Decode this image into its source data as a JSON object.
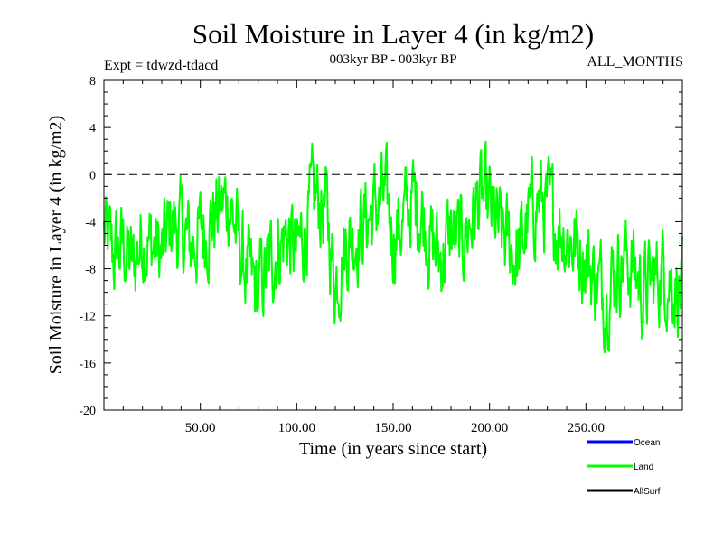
{
  "chart_data": {
    "type": "line",
    "title": "Soil Moisture in Layer 4 (in kg/m2)",
    "subtitle": "003kyr BP - 003kyr BP",
    "experiment_label": "Expt = tdwzd-tdacd",
    "months_label": "ALL_MONTHS",
    "xlabel": "Time (in years since start)",
    "ylabel": "Soil Moisture in Layer 4 (in kg/m2)",
    "xlim": [
      0,
      300
    ],
    "ylim": [
      -20,
      8
    ],
    "xticks": [
      50,
      100,
      150,
      200,
      250
    ],
    "xtick_labels": [
      "50.00",
      "100.00",
      "150.00",
      "200.00",
      "250.00"
    ],
    "yticks": [
      8,
      4,
      0,
      -4,
      -8,
      -12,
      -16,
      -20
    ],
    "ytick_labels": [
      "8",
      "4",
      "0",
      "-4",
      "-8",
      "-12",
      "-16",
      "-20"
    ],
    "reference_line": {
      "y": 0,
      "style": "dashed",
      "color": "#000000"
    },
    "legend": [
      {
        "name": "Ocean",
        "color": "#0000ff"
      },
      {
        "name": "Land",
        "color": "#00ff00"
      },
      {
        "name": "AllSurf",
        "color": "#000000"
      }
    ],
    "legend_position": "bottom-right",
    "series": [
      {
        "name": "Land",
        "color": "#00ff00",
        "x": [
          0,
          5,
          10,
          15,
          20,
          25,
          30,
          35,
          40,
          45,
          50,
          55,
          60,
          65,
          70,
          75,
          80,
          85,
          90,
          95,
          100,
          105,
          110,
          115,
          120,
          125,
          130,
          135,
          140,
          145,
          150,
          155,
          160,
          165,
          170,
          175,
          180,
          185,
          190,
          195,
          200,
          205,
          210,
          215,
          220,
          225,
          230,
          235,
          240,
          245,
          250,
          255,
          260,
          265,
          270,
          275,
          280,
          285,
          290,
          295,
          300
        ],
        "values": [
          -5,
          -7,
          -6,
          -8,
          -5,
          -6,
          -7,
          -4,
          -5,
          -6,
          -5,
          -4,
          -3,
          -2,
          -6,
          -9,
          -10,
          -8,
          -6,
          -5,
          -7,
          -4,
          -2,
          -3,
          -9,
          -6,
          -5,
          -4,
          -3,
          -2,
          -5,
          -4,
          -2,
          -3,
          -6,
          -7,
          -5,
          -6,
          -4,
          -2,
          -3,
          -5,
          -6,
          -7,
          -4,
          -2,
          -3,
          -4,
          -5,
          -6,
          -7,
          -9,
          -10,
          -8,
          -7,
          -8,
          -10,
          -9,
          -8,
          -9,
          -10
        ]
      }
    ]
  }
}
